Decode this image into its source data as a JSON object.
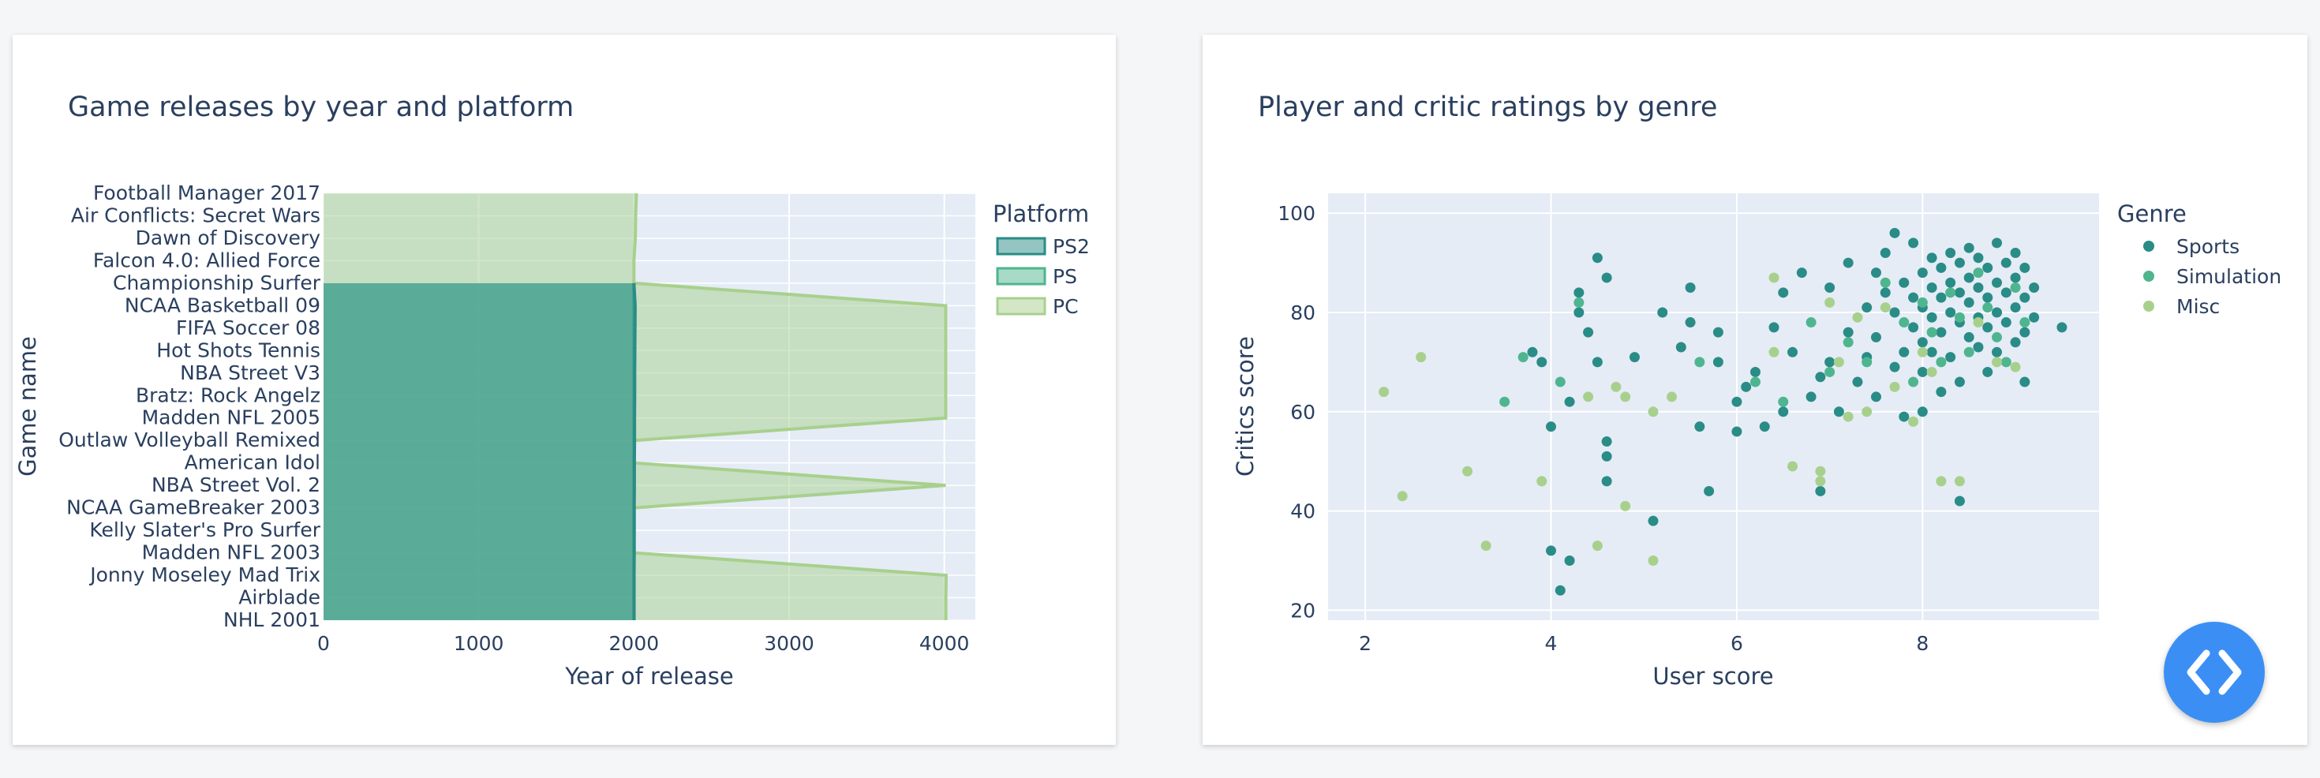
{
  "left_chart": {
    "title": "Game releases by year and platform"
  },
  "right_chart": {
    "title": "Player and critic ratings by genre"
  },
  "chart_data": [
    {
      "type": "area",
      "orientation": "horizontal",
      "title": "Game releases by year and platform",
      "xlabel": "Year of release",
      "ylabel": "Game name",
      "xlim": [
        0,
        4200
      ],
      "xticks": [
        0,
        1000,
        2000,
        3000,
        4000
      ],
      "legend_title": "Platform",
      "legend_position": "right",
      "categories": [
        "NHL 2001",
        "Airblade",
        "Jonny Moseley Mad Trix",
        "Madden NFL 2003",
        "Kelly Slater's Pro Surfer",
        "NCAA GameBreaker 2003",
        "NBA Street Vol. 2",
        "American Idol",
        "Outlaw Volleyball Remixed",
        "Madden NFL 2005",
        "Bratz: Rock Angelz",
        "NBA Street V3",
        "Hot Shots Tennis",
        "FIFA Soccer 08",
        "NCAA Basketball 09",
        "Championship Surfer",
        "Falcon 4.0: Allied Force",
        "Dawn of Discovery",
        "Air Conflicts: Secret Wars",
        "Football Manager 2017"
      ],
      "series": [
        {
          "name": "PS2",
          "color": "#2a8c86",
          "values": [
            2001,
            2001,
            2001,
            2002,
            2002,
            2002,
            2003,
            2003,
            2004,
            2004,
            2005,
            2005,
            2006,
            2007,
            2008,
            2000,
            null,
            null,
            null,
            null
          ]
        },
        {
          "name": "PS",
          "color": "#4fb58f",
          "values": [
            2000,
            2000,
            2000,
            2000,
            2000,
            2000,
            2000,
            2000,
            2000,
            2000,
            2000,
            2000,
            2000,
            2000,
            2000,
            2000,
            null,
            null,
            null,
            null
          ]
        },
        {
          "name": "PC",
          "color": "#a8d08d",
          "values": [
            4010,
            4010,
            4012,
            2000,
            2002,
            2002,
            4009,
            2003,
            2004,
            4009,
            4009,
            4009,
            4009,
            4009,
            4009,
            2000,
            2000,
            2009,
            2011,
            2016
          ]
        }
      ]
    },
    {
      "type": "scatter",
      "title": "Player and critic ratings by genre",
      "xlabel": "User score",
      "ylabel": "Critics score",
      "xlim": [
        1.6,
        9.9
      ],
      "ylim": [
        18,
        104
      ],
      "xticks": [
        2,
        4,
        6,
        8
      ],
      "yticks": [
        20,
        40,
        60,
        80,
        100
      ],
      "legend_title": "Genre",
      "legend_position": "right",
      "series": [
        {
          "name": "Sports",
          "color": "#2a8c86",
          "points": [
            [
              3.8,
              72
            ],
            [
              3.9,
              70
            ],
            [
              4.0,
              57
            ],
            [
              4.0,
              32
            ],
            [
              4.1,
              24
            ],
            [
              4.2,
              30
            ],
            [
              4.2,
              62
            ],
            [
              4.3,
              84
            ],
            [
              4.3,
              80
            ],
            [
              4.4,
              76
            ],
            [
              4.5,
              91
            ],
            [
              4.5,
              70
            ],
            [
              4.6,
              87
            ],
            [
              4.6,
              54
            ],
            [
              4.6,
              51
            ],
            [
              4.6,
              46
            ],
            [
              4.9,
              71
            ],
            [
              5.1,
              38
            ],
            [
              5.2,
              80
            ],
            [
              5.4,
              73
            ],
            [
              5.5,
              85
            ],
            [
              5.5,
              78
            ],
            [
              5.6,
              57
            ],
            [
              5.7,
              44
            ],
            [
              5.8,
              70
            ],
            [
              5.8,
              76
            ],
            [
              6.0,
              62
            ],
            [
              6.0,
              56
            ],
            [
              6.1,
              65
            ],
            [
              6.2,
              68
            ],
            [
              6.3,
              57
            ],
            [
              6.4,
              77
            ],
            [
              6.5,
              84
            ],
            [
              6.5,
              60
            ],
            [
              6.6,
              72
            ],
            [
              6.7,
              88
            ],
            [
              6.8,
              63
            ],
            [
              6.9,
              67
            ],
            [
              6.9,
              44
            ],
            [
              7.0,
              70
            ],
            [
              7.0,
              85
            ],
            [
              7.1,
              60
            ],
            [
              7.2,
              76
            ],
            [
              7.2,
              90
            ],
            [
              7.3,
              66
            ],
            [
              7.4,
              81
            ],
            [
              7.4,
              71
            ],
            [
              7.5,
              88
            ],
            [
              7.5,
              75
            ],
            [
              7.5,
              63
            ],
            [
              7.6,
              92
            ],
            [
              7.6,
              84
            ],
            [
              7.7,
              96
            ],
            [
              7.7,
              80
            ],
            [
              7.7,
              69
            ],
            [
              7.8,
              86
            ],
            [
              7.8,
              72
            ],
            [
              7.8,
              59
            ],
            [
              7.9,
              94
            ],
            [
              7.9,
              83
            ],
            [
              7.9,
              77
            ],
            [
              8.0,
              88
            ],
            [
              8.0,
              81
            ],
            [
              8.0,
              74
            ],
            [
              8.0,
              68
            ],
            [
              8.0,
              60
            ],
            [
              8.1,
              91
            ],
            [
              8.1,
              85
            ],
            [
              8.1,
              79
            ],
            [
              8.1,
              72
            ],
            [
              8.2,
              89
            ],
            [
              8.2,
              83
            ],
            [
              8.2,
              76
            ],
            [
              8.2,
              64
            ],
            [
              8.3,
              92
            ],
            [
              8.3,
              86
            ],
            [
              8.3,
              80
            ],
            [
              8.3,
              71
            ],
            [
              8.4,
              90
            ],
            [
              8.4,
              84
            ],
            [
              8.4,
              78
            ],
            [
              8.4,
              66
            ],
            [
              8.4,
              42
            ],
            [
              8.5,
              93
            ],
            [
              8.5,
              87
            ],
            [
              8.5,
              82
            ],
            [
              8.5,
              75
            ],
            [
              8.6,
              91
            ],
            [
              8.6,
              85
            ],
            [
              8.6,
              79
            ],
            [
              8.6,
              73
            ],
            [
              8.7,
              89
            ],
            [
              8.7,
              83
            ],
            [
              8.7,
              77
            ],
            [
              8.7,
              68
            ],
            [
              8.8,
              94
            ],
            [
              8.8,
              86
            ],
            [
              8.8,
              80
            ],
            [
              8.8,
              72
            ],
            [
              8.9,
              90
            ],
            [
              8.9,
              84
            ],
            [
              8.9,
              78
            ],
            [
              9.0,
              92
            ],
            [
              9.0,
              87
            ],
            [
              9.0,
              81
            ],
            [
              9.0,
              74
            ],
            [
              9.1,
              89
            ],
            [
              9.1,
              83
            ],
            [
              9.1,
              76
            ],
            [
              9.1,
              66
            ],
            [
              9.2,
              85
            ],
            [
              9.2,
              79
            ],
            [
              9.5,
              77
            ]
          ]
        },
        {
          "name": "Simulation",
          "color": "#4fb58f",
          "points": [
            [
              3.5,
              62
            ],
            [
              3.7,
              71
            ],
            [
              4.1,
              66
            ],
            [
              4.3,
              82
            ],
            [
              5.6,
              70
            ],
            [
              6.2,
              66
            ],
            [
              6.5,
              62
            ],
            [
              6.8,
              78
            ],
            [
              7.0,
              68
            ],
            [
              7.2,
              74
            ],
            [
              7.4,
              70
            ],
            [
              7.6,
              86
            ],
            [
              7.8,
              78
            ],
            [
              7.9,
              66
            ],
            [
              8.0,
              82
            ],
            [
              8.1,
              76
            ],
            [
              8.2,
              70
            ],
            [
              8.3,
              84
            ],
            [
              8.4,
              79
            ],
            [
              8.5,
              72
            ],
            [
              8.6,
              88
            ],
            [
              8.7,
              81
            ],
            [
              8.8,
              75
            ],
            [
              8.9,
              70
            ],
            [
              9.0,
              85
            ],
            [
              9.1,
              78
            ]
          ]
        },
        {
          "name": "Misc",
          "color": "#a8d08d",
          "points": [
            [
              2.2,
              64
            ],
            [
              2.4,
              43
            ],
            [
              2.6,
              71
            ],
            [
              3.1,
              48
            ],
            [
              3.3,
              33
            ],
            [
              3.9,
              46
            ],
            [
              4.4,
              63
            ],
            [
              4.5,
              33
            ],
            [
              4.7,
              65
            ],
            [
              4.8,
              41
            ],
            [
              4.8,
              63
            ],
            [
              5.1,
              30
            ],
            [
              5.1,
              60
            ],
            [
              5.3,
              63
            ],
            [
              6.4,
              87
            ],
            [
              6.4,
              72
            ],
            [
              6.6,
              49
            ],
            [
              6.9,
              48
            ],
            [
              6.9,
              46
            ],
            [
              7.0,
              82
            ],
            [
              7.1,
              70
            ],
            [
              7.2,
              59
            ],
            [
              7.3,
              79
            ],
            [
              7.4,
              60
            ],
            [
              7.6,
              81
            ],
            [
              7.7,
              65
            ],
            [
              7.9,
              58
            ],
            [
              8.0,
              72
            ],
            [
              8.1,
              68
            ],
            [
              8.2,
              46
            ],
            [
              8.4,
              46
            ],
            [
              8.6,
              78
            ],
            [
              8.8,
              70
            ],
            [
              9.0,
              69
            ]
          ]
        }
      ]
    }
  ],
  "fab": {
    "icon": "code-brackets-icon",
    "color": "#3b8ff4"
  }
}
